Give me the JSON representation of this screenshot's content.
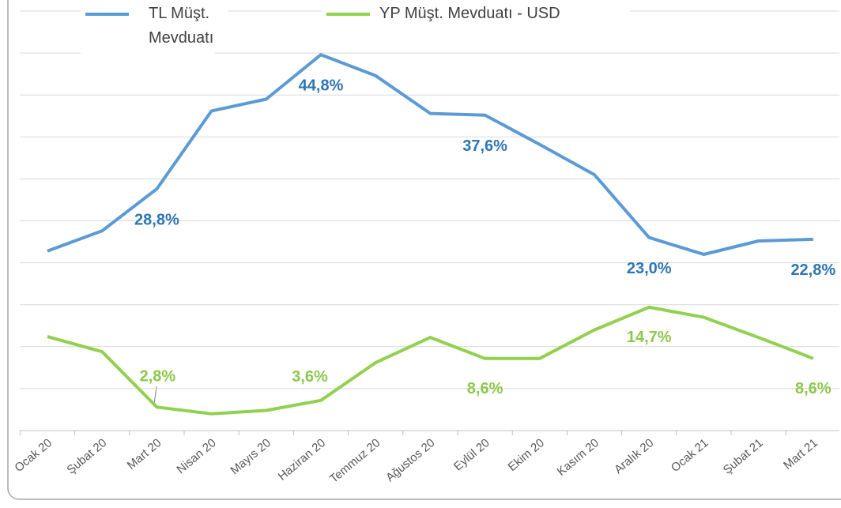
{
  "chart_data": {
    "type": "line",
    "categories": [
      "Ocak 20",
      "Şubat 20",
      "Mart 20",
      "Nisan 20",
      "Mayıs 20",
      "Haziran 20",
      "Temmuz 20",
      "Ağustos 20",
      "Eylül 20",
      "Ekim 20",
      "Kasım 20",
      "Aralık 20",
      "Ocak 21",
      "Şubat 21",
      "Mart 21"
    ],
    "series": [
      {
        "name": "TL Müşt. Mevduatı",
        "color": "#5b9bd5",
        "label_color": "#2e75b6",
        "values": [
          21.4,
          23.8,
          28.8,
          38.1,
          39.5,
          44.8,
          42.3,
          37.8,
          37.6,
          34.1,
          30.5,
          23.0,
          21.0,
          22.6,
          22.8
        ],
        "value_labels": [
          null,
          null,
          "28,8%",
          null,
          null,
          "44,8%",
          null,
          null,
          "37,6%",
          null,
          null,
          "23,0%",
          null,
          null,
          "22,8%"
        ]
      },
      {
        "name": "YP Müşt. Mevduatı - USD",
        "color": "#92d050",
        "label_color": "#8cc84b",
        "values": [
          11.2,
          9.4,
          2.8,
          2.0,
          2.4,
          3.6,
          8.1,
          11.1,
          8.6,
          8.6,
          12.0,
          14.7,
          13.5,
          11.1,
          8.6
        ],
        "value_labels": [
          null,
          null,
          "2,8%",
          null,
          null,
          "3,6%",
          null,
          null,
          "8,6%",
          null,
          null,
          "14,7%",
          null,
          null,
          "8,6%"
        ]
      }
    ],
    "ylim": [
      0,
      50
    ],
    "yticks": [
      0,
      5,
      10,
      15,
      20,
      25,
      30,
      35,
      40,
      45,
      50
    ],
    "grid": true
  }
}
